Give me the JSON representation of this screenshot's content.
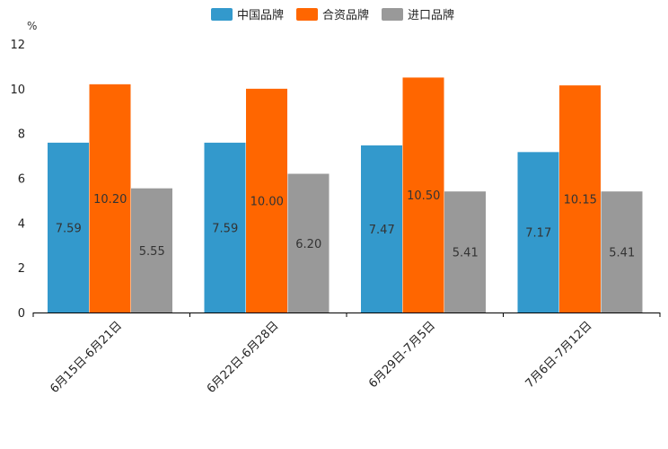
{
  "chart_data": {
    "type": "bar",
    "title": "",
    "ylabel": "%",
    "xlabel": "",
    "ylim": [
      0,
      12
    ],
    "yticks": [
      0,
      2,
      4,
      6,
      8,
      10,
      12
    ],
    "legend_position": "top-center",
    "grid": false,
    "categories": [
      "6月15日-6月21日",
      "6月22日-6月28日",
      "6月29日-7月5日",
      "7月6日-7月12日"
    ],
    "series": [
      {
        "name": "中国品牌",
        "color": "#3399cc",
        "values": [
          7.59,
          7.59,
          7.47,
          7.17
        ],
        "labels": [
          "7.59",
          "7.59",
          "7.47",
          "7.17"
        ]
      },
      {
        "name": "合资品牌",
        "color": "#ff6600",
        "values": [
          10.2,
          10.0,
          10.5,
          10.15
        ],
        "labels": [
          "10.20",
          "10.00",
          "10.50",
          "10.15"
        ]
      },
      {
        "name": "进口品牌",
        "color": "#999999",
        "values": [
          5.55,
          6.2,
          5.41,
          5.41
        ],
        "labels": [
          "5.55",
          "6.20",
          "5.41",
          "5.41"
        ]
      }
    ]
  }
}
